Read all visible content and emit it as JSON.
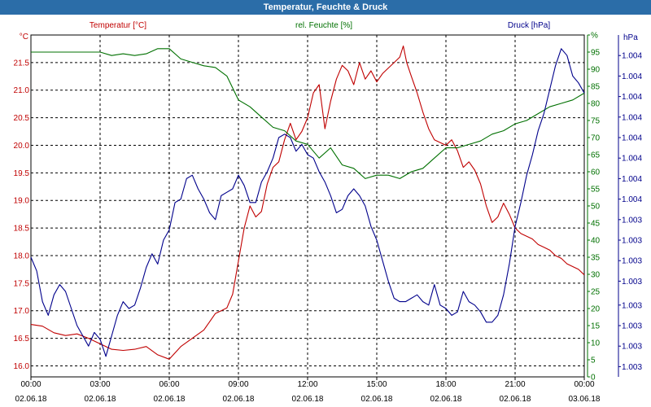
{
  "window": {
    "title": "Temperatur, Feuchte & Druck"
  },
  "chart_data": {
    "type": "line",
    "title": "Temperatur, Feuchte & Druck",
    "x_ticks": [
      {
        "time": "00:00",
        "date": "02.06.18",
        "hour": 0
      },
      {
        "time": "03:00",
        "date": "02.06.18",
        "hour": 3
      },
      {
        "time": "06:00",
        "date": "02.06.18",
        "hour": 6
      },
      {
        "time": "09:00",
        "date": "02.06.18",
        "hour": 9
      },
      {
        "time": "12:00",
        "date": "02.06.18",
        "hour": 12
      },
      {
        "time": "15:00",
        "date": "02.06.18",
        "hour": 15
      },
      {
        "time": "18:00",
        "date": "02.06.18",
        "hour": 18
      },
      {
        "time": "21:00",
        "date": "02.06.18",
        "hour": 21
      },
      {
        "time": "00:00",
        "date": "03.06.18",
        "hour": 24
      }
    ],
    "xlim": [
      0,
      24
    ],
    "grid": true,
    "axes": {
      "temperature": {
        "unit": "°C",
        "label": "Temperatur [°C]",
        "color": "#c00000",
        "ylim": [
          15.8,
          22.0
        ],
        "ticks": [
          "16.0",
          "16.5",
          "17.0",
          "17.5",
          "18.0",
          "18.5",
          "19.0",
          "19.5",
          "20.0",
          "20.5",
          "21.0",
          "21.5"
        ],
        "tick_values": [
          16.0,
          16.5,
          17.0,
          17.5,
          18.0,
          18.5,
          19.0,
          19.5,
          20.0,
          20.5,
          21.0,
          21.5
        ]
      },
      "humidity": {
        "unit": "%",
        "label": "rel. Feuchte [%]",
        "color": "#007000",
        "ylim": [
          0,
          100
        ],
        "ticks": [
          "0",
          "5",
          "10",
          "15",
          "20",
          "25",
          "30",
          "35",
          "40",
          "45",
          "50",
          "55",
          "60",
          "65",
          "70",
          "75",
          "80",
          "85",
          "90",
          "95",
          "%"
        ],
        "tick_values": [
          0,
          5,
          10,
          15,
          20,
          25,
          30,
          35,
          40,
          45,
          50,
          55,
          60,
          65,
          70,
          75,
          80,
          85,
          90,
          95,
          100
        ]
      },
      "pressure": {
        "unit": "hPa",
        "label": "Druck [hPa]",
        "color": "#00008b",
        "ylim": [
          0,
          100
        ],
        "ticks": [
          "1.003",
          "1.003",
          "1.003",
          "1.003",
          "1.003",
          "1.003",
          "1.003",
          "1.003",
          "1.004",
          "1.004",
          "1.004",
          "1.004",
          "1.004",
          "1.004",
          "1.004",
          "1.004"
        ],
        "tick_values": [
          3,
          9,
          15,
          21,
          28,
          34,
          40,
          46,
          52,
          58,
          64,
          70,
          76,
          82,
          88,
          94
        ]
      }
    },
    "series": [
      {
        "name": "Temperatur [°C]",
        "axis": "temperature",
        "color": "#c00000",
        "x": [
          0,
          0.5,
          1,
          1.5,
          2,
          2.5,
          3,
          3.25,
          3.5,
          4,
          4.5,
          5,
          5.5,
          6,
          6.5,
          7,
          7.5,
          7.75,
          8,
          8.25,
          8.5,
          8.75,
          9,
          9.25,
          9.5,
          9.75,
          10,
          10.25,
          10.5,
          10.75,
          11,
          11.25,
          11.5,
          11.75,
          12,
          12.25,
          12.5,
          12.75,
          13,
          13.25,
          13.5,
          13.75,
          14,
          14.25,
          14.5,
          14.75,
          15,
          15.25,
          15.5,
          15.75,
          16,
          16.15,
          16.3,
          16.5,
          16.75,
          17,
          17.25,
          17.5,
          17.75,
          18,
          18.25,
          18.5,
          18.75,
          19,
          19.25,
          19.5,
          19.75,
          20,
          20.25,
          20.5,
          20.75,
          21,
          21.25,
          21.5,
          21.75,
          22,
          22.25,
          22.5,
          22.75,
          23,
          23.25,
          23.5,
          23.75,
          24
        ],
        "values": [
          16.75,
          16.72,
          16.6,
          16.55,
          16.58,
          16.5,
          16.4,
          16.35,
          16.3,
          16.28,
          16.3,
          16.35,
          16.2,
          16.12,
          16.35,
          16.5,
          16.65,
          16.8,
          16.95,
          17.0,
          17.05,
          17.3,
          17.9,
          18.5,
          18.9,
          18.7,
          18.8,
          19.3,
          19.6,
          19.7,
          20.1,
          20.4,
          20.1,
          20.25,
          20.5,
          20.95,
          21.1,
          20.3,
          20.8,
          21.2,
          21.45,
          21.35,
          21.1,
          21.5,
          21.2,
          21.35,
          21.15,
          21.3,
          21.4,
          21.5,
          21.6,
          21.8,
          21.5,
          21.25,
          20.95,
          20.6,
          20.3,
          20.1,
          20.05,
          20.0,
          20.1,
          19.9,
          19.6,
          19.7,
          19.55,
          19.3,
          18.9,
          18.6,
          18.7,
          18.95,
          18.75,
          18.5,
          18.4,
          18.35,
          18.3,
          18.2,
          18.15,
          18.1,
          18.0,
          17.95,
          17.85,
          17.8,
          17.75,
          17.65
        ]
      },
      {
        "name": "rel. Feuchte [%]",
        "axis": "humidity",
        "color": "#007000",
        "x": [
          0,
          1,
          2,
          3,
          3.5,
          4,
          4.5,
          5,
          5.5,
          6,
          6.5,
          7,
          7.5,
          8,
          8.5,
          9,
          9.5,
          10,
          10.5,
          11,
          11.5,
          12,
          12.5,
          13,
          13.5,
          14,
          14.5,
          15,
          15.5,
          16,
          16.5,
          17,
          17.5,
          18,
          18.5,
          19,
          19.5,
          20,
          20.5,
          21,
          21.5,
          22,
          22.5,
          23,
          23.5,
          24
        ],
        "values": [
          95,
          95,
          95,
          95,
          94,
          94.5,
          94,
          94.5,
          96,
          96,
          93,
          92,
          91,
          90.5,
          88,
          81,
          79,
          76,
          73,
          72,
          69,
          68,
          64,
          67,
          62,
          61,
          58,
          59,
          59,
          58,
          60,
          61,
          64,
          67,
          67,
          68,
          69,
          71,
          72,
          74,
          75,
          77,
          79,
          80,
          81,
          83
        ]
      },
      {
        "name": "Druck [hPa]",
        "axis": "pressure",
        "color": "#00008b",
        "x": [
          0,
          0.25,
          0.5,
          0.75,
          1,
          1.25,
          1.5,
          1.75,
          2,
          2.25,
          2.5,
          2.75,
          3,
          3.25,
          3.5,
          3.75,
          4,
          4.25,
          4.5,
          4.75,
          5,
          5.25,
          5.5,
          5.75,
          6,
          6.25,
          6.5,
          6.75,
          7,
          7.25,
          7.5,
          7.75,
          8,
          8.25,
          8.5,
          8.75,
          9,
          9.25,
          9.5,
          9.75,
          10,
          10.25,
          10.5,
          10.75,
          11,
          11.25,
          11.5,
          11.75,
          12,
          12.25,
          12.5,
          12.75,
          13,
          13.25,
          13.5,
          13.75,
          14,
          14.25,
          14.5,
          14.75,
          15,
          15.25,
          15.5,
          15.75,
          16,
          16.25,
          16.5,
          16.75,
          17,
          17.25,
          17.5,
          17.75,
          18,
          18.25,
          18.5,
          18.75,
          19,
          19.25,
          19.5,
          19.75,
          20,
          20.25,
          20.5,
          20.75,
          21,
          21.25,
          21.5,
          21.75,
          22,
          22.25,
          22.5,
          22.75,
          23,
          23.25,
          23.5,
          23.75,
          24
        ],
        "values": [
          35,
          31,
          22,
          18,
          24,
          27,
          25,
          20,
          15,
          12,
          9,
          13,
          11,
          6,
          12,
          18,
          22,
          20,
          21,
          26,
          32,
          36,
          33,
          40,
          43,
          51,
          52,
          58,
          59,
          55,
          52,
          48,
          46,
          53,
          54,
          55,
          59,
          56,
          51,
          51,
          57,
          60,
          64,
          70,
          71,
          70,
          66,
          68,
          65,
          64,
          60,
          57,
          53,
          48,
          49,
          53,
          55,
          53,
          50,
          44,
          40,
          34,
          28,
          23,
          22,
          22,
          23,
          24,
          22,
          21,
          27,
          21,
          20,
          18,
          19,
          25,
          22,
          21,
          19,
          16,
          16,
          18,
          24,
          33,
          44,
          51,
          59,
          65,
          72,
          77,
          84,
          91,
          96,
          94,
          88,
          86,
          83
        ]
      }
    ]
  }
}
